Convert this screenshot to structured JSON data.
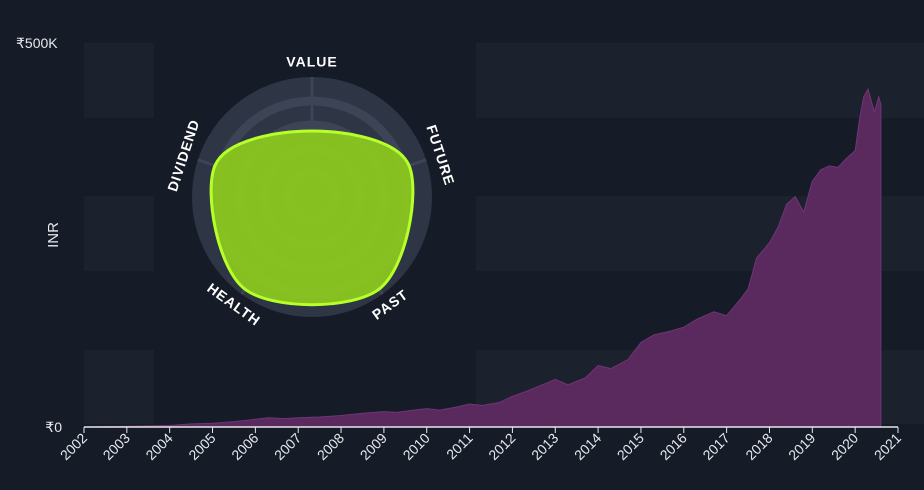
{
  "colors": {
    "background": "#151b27",
    "band": "#1b212d",
    "area_fill": "#5a2a5f",
    "area_stroke": "#6f3575",
    "axis": "#e6e8ec",
    "snowflake_fill": "#8bc81f",
    "snowflake_stroke": "#b6ff2a",
    "radar_bg": "#2e3545",
    "radar_ring": "#3c4456"
  },
  "chart_data": {
    "type": "area",
    "ylabel": "INR",
    "ytick_labels": [
      "₹0",
      "₹500K"
    ],
    "ylim": [
      0,
      500000
    ],
    "xlim": [
      2002,
      2021
    ],
    "xtick_labels": [
      "2002",
      "2003",
      "2004",
      "2005",
      "2006",
      "2007",
      "2008",
      "2009",
      "2010",
      "2011",
      "2012",
      "2013",
      "2014",
      "2015",
      "2016",
      "2017",
      "2018",
      "2019",
      "2020",
      "2021"
    ],
    "series": [
      {
        "x": [
          2002.0,
          2003.0,
          2004.0,
          2004.5,
          2005.0,
          2005.5,
          2006.0,
          2006.3,
          2006.7,
          2007.0,
          2007.5,
          2008.0,
          2008.5,
          2009.0,
          2009.3,
          2009.7,
          2010.0,
          2010.3,
          2010.7,
          2011.0,
          2011.3,
          2011.7,
          2012.0,
          2012.3,
          2012.7,
          2013.0,
          2013.3,
          2013.7,
          2014.0,
          2014.3,
          2014.7,
          2015.0,
          2015.3,
          2015.7,
          2016.0,
          2016.3,
          2016.7,
          2017.0,
          2017.3,
          2017.5,
          2017.7,
          2018.0,
          2018.2,
          2018.4,
          2018.6,
          2018.8,
          2019.0,
          2019.2,
          2019.4,
          2019.6,
          2019.8,
          2020.0,
          2020.1,
          2020.2,
          2020.3,
          2020.45,
          2020.55,
          2020.6
        ],
        "y": [
          0,
          1000,
          2000,
          4000,
          5000,
          7000,
          10000,
          12000,
          11000,
          12000,
          13000,
          15000,
          18000,
          20000,
          19000,
          22000,
          24000,
          22000,
          26000,
          30000,
          28000,
          32000,
          40000,
          46000,
          55000,
          62000,
          55000,
          64000,
          80000,
          76000,
          88000,
          110000,
          120000,
          125000,
          130000,
          140000,
          150000,
          145000,
          165000,
          180000,
          220000,
          240000,
          260000,
          290000,
          300000,
          280000,
          320000,
          335000,
          340000,
          338000,
          350000,
          360000,
          400000,
          430000,
          440000,
          410000,
          430000,
          420000
        ]
      }
    ]
  },
  "snowflake": {
    "labels": [
      "VALUE",
      "FUTURE",
      "PAST",
      "HEALTH",
      "DIVIDEND"
    ],
    "scores": [
      0.55,
      0.85,
      0.95,
      0.95,
      0.85
    ]
  }
}
